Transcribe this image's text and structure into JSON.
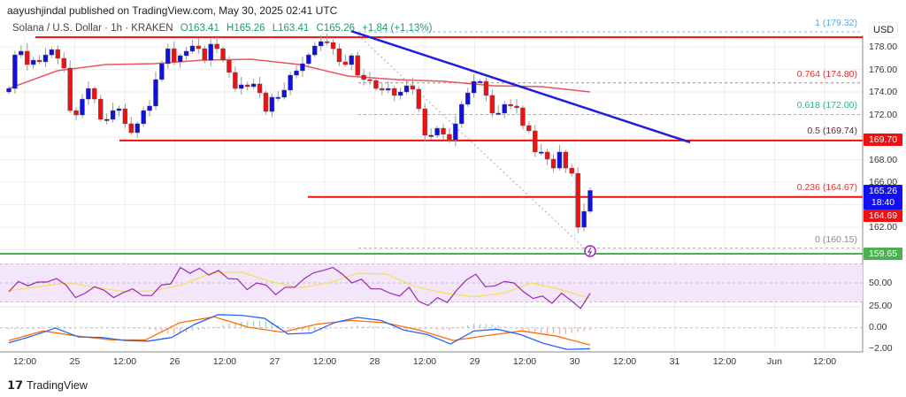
{
  "header": {
    "publisher": "aayushjindal published on TradingView.com, May 30, 2025 02:41 UTC"
  },
  "legend": {
    "symbol": "Solana / U.S. Dollar · 1h · KRAKEN",
    "open": "O163.41",
    "high": "H165.26",
    "low": "L163.41",
    "close": "C165.26",
    "change": "+1.84 (+1.13%)"
  },
  "axis": {
    "currency": "USD"
  },
  "badges": {
    "resistance": "169.70",
    "last_price": "165.26",
    "countdown": "18:40",
    "level_2": "164.69",
    "support": "159.65"
  },
  "fib_labels": [
    "1 (179.32)",
    "0.764 (174.80)",
    "0.618 (172.00)",
    "0.5 (169.74)",
    "0.236 (164.67)",
    "0 (160.15)"
  ],
  "branding": {
    "logo": "TradingView"
  },
  "colors": {
    "up": "#1010e0",
    "down": "#ee1111",
    "ma": "#f05060",
    "trendline": "#1e1ee0",
    "support": "#4caf50",
    "rsi": "#9c27b0",
    "rsi_ma": "#f5e050",
    "macd": "#2962ff",
    "signal": "#ff6d00"
  },
  "chart_data": {
    "type": "candlestick",
    "title": "Solana / U.S. Dollar · 1h · KRAKEN",
    "y_ticks": [
      "178.00",
      "176.00",
      "174.00",
      "172.00",
      "170.00",
      "168.00",
      "166.00",
      "164.00",
      "162.00",
      "160.00"
    ],
    "x_ticks": [
      "12:00",
      "25",
      "12:00",
      "26",
      "12:00",
      "27",
      "12:00",
      "28",
      "12:00",
      "29",
      "12:00",
      "30",
      "12:00",
      "31",
      "12:00",
      "Jun",
      "12:00"
    ],
    "first_open": 174.0,
    "closes": [
      174.31,
      177.29,
      177.61,
      176.43,
      176.82,
      176.67,
      177.29,
      177.76,
      176.98,
      176.12,
      172.35,
      171.96,
      173.37,
      174.31,
      173.37,
      171.57,
      171.57,
      172.35,
      172.51,
      171.18,
      170.39,
      171.18,
      172.35,
      172.75,
      175.1,
      176.51,
      177.84,
      176.67,
      177.22,
      177.61,
      178.08,
      177.84,
      176.82,
      178.24,
      177.84,
      176.82,
      175.73,
      174.31,
      174.63,
      174.47,
      174.71,
      173.92,
      172.27,
      173.53,
      173.53,
      174.16,
      175.49,
      175.88,
      176.51,
      177.29,
      178.08,
      178.47,
      178.39,
      177.84,
      176.67,
      176.43,
      177.22,
      175.49,
      175.1,
      175.02,
      174.31,
      174.16,
      174.31,
      173.69,
      174.0,
      174.55,
      174.24,
      172.51,
      170.16,
      170.16,
      170.78,
      170.24,
      169.76,
      171.18,
      172.9,
      173.92,
      174.94,
      174.94,
      173.69,
      172.12,
      172.12,
      172.9,
      172.75,
      172.59,
      171.02,
      170.55,
      168.67,
      168.67,
      168.04,
      167.25,
      168.67,
      167.25,
      166.78,
      162.0,
      163.41,
      165.26
    ],
    "moving_average": [
      174.31,
      175.88,
      176.43,
      176.51,
      176.82,
      176.9,
      176.43,
      175.41,
      175.1,
      174.94,
      174.55,
      174.47,
      174.0
    ],
    "horizontal_levels": [
      {
        "price": 178.85,
        "color": "red"
      },
      {
        "price": 169.7,
        "color": "red"
      },
      {
        "price": 164.69,
        "color": "red"
      },
      {
        "price": 159.65,
        "color": "green"
      }
    ],
    "trendline": {
      "from": {
        "time": "May 27 17:00",
        "price": 179.4
      },
      "to": {
        "time": "May 31 02:00",
        "price": 169.53
      }
    },
    "fibonacci": [
      {
        "ratio": 1,
        "price": 179.32
      },
      {
        "ratio": 0.764,
        "price": 174.8
      },
      {
        "ratio": 0.618,
        "price": 172.0
      },
      {
        "ratio": 0.5,
        "price": 169.74
      },
      {
        "ratio": 0.236,
        "price": 164.67
      },
      {
        "ratio": 0,
        "price": 160.15
      }
    ],
    "rsi": {
      "ticks": [
        "50.00",
        "25.00"
      ],
      "band": [
        30,
        70
      ],
      "values": [
        40.8,
        51.5,
        46.9,
        50.9,
        50.9,
        54.6,
        47.8,
        34.6,
        39.2,
        46,
        42.3,
        34.6,
        39.8,
        43.8,
        36.8,
        36.8,
        47.8,
        49.1,
        66.3,
        60.2,
        65.4,
        58.3,
        63.2,
        54.6,
        54,
        42.9,
        50,
        47.8,
        37.7,
        45.4,
        45.4,
        54.6,
        60.8,
        63.2,
        66.3,
        59.2,
        50,
        54,
        43.8,
        43.8,
        39.2,
        36.2,
        45.4,
        30.6,
        26.3,
        34.6,
        29.4,
        42.3,
        53.1,
        59.2,
        46,
        46.9,
        51.5,
        50,
        40.8,
        33.7,
        36.2,
        28.5,
        39.2,
        31.5,
        23.2,
        39.2
      ],
      "ma": [
        41.7,
        46,
        50,
        45.4,
        40.8,
        41.7,
        48.5,
        60.8,
        61.4,
        51.5,
        44.8,
        50,
        60.2,
        59.2,
        46,
        39.2,
        35.5,
        39.2,
        50,
        42.9,
        33.7
      ]
    },
    "macd": {
      "ticks": [
        "0.00",
        "−2.00"
      ],
      "macd": [
        -1.46,
        -0.8,
        -0.03,
        -0.89,
        -0.94,
        -1.23,
        -1.29,
        -0.94,
        0.34,
        1.26,
        1.2,
        0.91,
        -0.6,
        -0.51,
        0.49,
        1.0,
        0.71,
        -0.23,
        -0.66,
        -1.57,
        -0.31,
        -0.14,
        -0.66,
        -1.51,
        -2.09,
        -2.03
      ],
      "signal": [
        -1.23,
        -0.31,
        -0.8,
        -1.17,
        -1.17,
        0.49,
        1.06,
        0.06,
        -0.43,
        0.34,
        0.71,
        0.49,
        -0.23,
        -1.23,
        -0.74,
        -0.31,
        -0.8,
        -1.66
      ]
    }
  }
}
